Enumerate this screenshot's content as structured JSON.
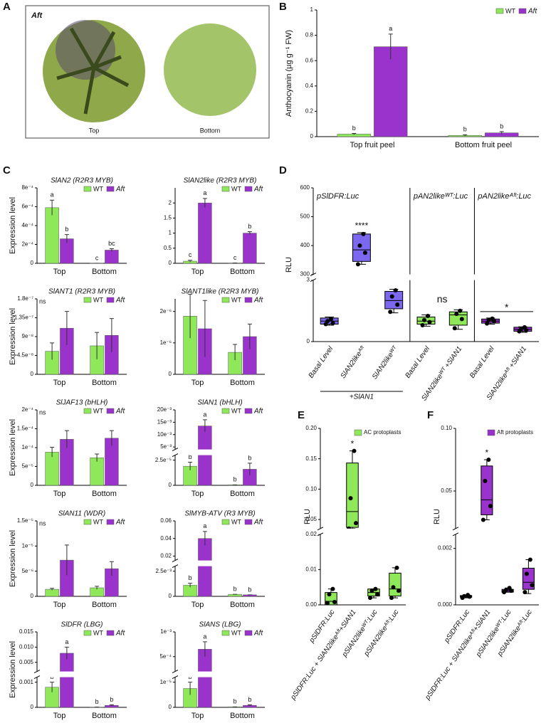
{
  "photo": {
    "panel": "A",
    "label": "Aft",
    "captions": [
      "Top",
      "Bottom"
    ]
  },
  "chart_data": [
    {
      "type": "bar",
      "panel": "B",
      "ylabel": "Anthocyanin (µg g⁻¹ FW)",
      "categories": [
        "Top fruit peel",
        "Bottom fruit peel"
      ],
      "ylim": [
        0,
        1
      ],
      "yticks": [
        0,
        0.2,
        0.4,
        0.6,
        0.8,
        1
      ],
      "series": [
        {
          "name": "WT",
          "color": "#8fe85a",
          "values": [
            0.02,
            0.01
          ],
          "errors": [
            0.005,
            0.005
          ],
          "labels": [
            "b",
            "b"
          ]
        },
        {
          "name": "Aft",
          "color": "#9933cc",
          "values": [
            0.71,
            0.03
          ],
          "errors": [
            0.1,
            0.01
          ],
          "labels": [
            "a",
            "b"
          ]
        }
      ]
    },
    {
      "type": "bar",
      "panel": "C",
      "title": "SlAN2 (R2R3 MYB)",
      "ylabel": "Expression level",
      "categories": [
        "Top",
        "Bottom"
      ],
      "ylim": [
        0,
        0.0008
      ],
      "yticks": [
        0,
        {
          "value": 0.0002,
          "label": "2e⁻⁴"
        },
        {
          "value": 0.0004,
          "label": "4e⁻⁴"
        },
        {
          "value": 0.0006,
          "label": "6e⁻⁴"
        },
        {
          "value": 0.0008,
          "label": "8e⁻⁴"
        }
      ],
      "series": [
        {
          "name": "WT",
          "color": "#8fe85a",
          "values": [
            0.00059,
            5e-07
          ],
          "errors": [
            8e-05,
            0
          ],
          "labels": [
            "a",
            "c"
          ]
        },
        {
          "name": "Aft",
          "color": "#9933cc",
          "values": [
            0.00026,
            0.00014
          ],
          "errors": [
            4.5e-05,
            1.5e-05
          ],
          "labels": [
            "b",
            "bc"
          ]
        }
      ]
    },
    {
      "type": "bar",
      "title": "SlAN2like (R2R3 MYB)",
      "categories": [
        "Top",
        "Bottom"
      ],
      "ylim": [
        0,
        2.5
      ],
      "yticks": [
        0,
        0.5,
        1,
        1.5,
        2
      ],
      "series": [
        {
          "name": "WT",
          "color": "#8fe85a",
          "values": [
            0.07,
            0.01
          ],
          "errors": [
            0.03,
            0
          ],
          "labels": [
            "c",
            "c"
          ]
        },
        {
          "name": "Aft",
          "color": "#9933cc",
          "values": [
            2.0,
            1.0
          ],
          "errors": [
            0.15,
            0.05
          ],
          "labels": [
            "a",
            "b"
          ]
        }
      ]
    },
    {
      "type": "bar",
      "title": "SlANT1 (R2R3 MYB)",
      "ylabel": "Expression level",
      "note": "ns",
      "categories": [
        "Top",
        "Bottom"
      ],
      "ylim": [
        0,
        1.8e-07
      ],
      "yticks": [
        0,
        {
          "value": 4.5e-08,
          "label": "4.5e⁻⁸"
        },
        {
          "value": 9e-08,
          "label": "9e⁻⁸"
        },
        {
          "value": 1.35e-07,
          "label": "1.35e⁻⁷"
        },
        {
          "value": 1.8e-07,
          "label": "1.8e⁻⁷"
        }
      ],
      "series": [
        {
          "name": "WT",
          "color": "#8fe85a",
          "values": [
            5.5e-08,
            6.8e-08
          ],
          "errors": [
            2e-08,
            3.2e-08
          ]
        },
        {
          "name": "Aft",
          "color": "#9933cc",
          "values": [
            1.1e-07,
            9.3e-08
          ],
          "errors": [
            4e-08,
            4e-08
          ]
        }
      ]
    },
    {
      "type": "bar",
      "title": "SlANT1like (R2R3 MYB)",
      "categories": [
        "Top",
        "Bottom"
      ],
      "ylim": [
        0,
        2.4e-06
      ],
      "yticks": [
        0,
        {
          "value": 1e-06,
          "label": "1e⁻⁶"
        },
        {
          "value": 2e-06,
          "label": "2e⁻⁶"
        }
      ],
      "series": [
        {
          "name": "WT",
          "color": "#8fe85a",
          "values": [
            1.85e-06,
            7e-07
          ],
          "errors": [
            7e-07,
            2.5e-07
          ]
        },
        {
          "name": "Aft",
          "color": "#9933cc",
          "values": [
            1.45e-06,
            1.2e-06
          ],
          "errors": [
            9e-07,
            4e-07
          ]
        }
      ]
    },
    {
      "type": "bar",
      "title": "SlJAF13 (bHLH)",
      "ylabel": "Expression level",
      "note": "ns",
      "categories": [
        "Top",
        "Bottom"
      ],
      "ylim": [
        0,
        0.0002
      ],
      "yticks": [
        0,
        {
          "value": 5e-05,
          "label": "5e⁻⁵"
        },
        {
          "value": 0.0001,
          "label": "1e⁻⁴"
        },
        {
          "value": 0.00015,
          "label": "1.5e⁻⁴"
        },
        {
          "value": 0.0002,
          "label": "2e⁻⁴"
        }
      ],
      "series": [
        {
          "name": "WT",
          "color": "#8fe85a",
          "values": [
            8.8e-05,
            7.3e-05
          ],
          "errors": [
            1.3e-05,
            1e-05
          ]
        },
        {
          "name": "Aft",
          "color": "#9933cc",
          "values": [
            0.000122,
            0.000125
          ],
          "errors": [
            2.3e-05,
            2e-05
          ]
        }
      ]
    },
    {
      "type": "bar",
      "title": "SlAN1 (bHLH)",
      "categories": [
        "Top",
        "Bottom"
      ],
      "ylim": [
        0,
        0.02
      ],
      "ybreak": [
        3e-05,
        0.004
      ],
      "yticks": [
        0,
        {
          "value": 2.5e-05,
          "label": "2.5e⁻⁵"
        },
        {
          "value": 0.005,
          "label": "5e⁻³"
        },
        {
          "value": 0.01,
          "label": "10e⁻³"
        },
        {
          "value": 0.015,
          "label": "15e⁻³"
        },
        {
          "value": 0.02,
          "label": "20e⁻³"
        }
      ],
      "series": [
        {
          "name": "WT",
          "color": "#8fe85a",
          "values": [
            1.9e-05,
            5e-07
          ],
          "errors": [
            4e-06,
            0
          ],
          "labels": [
            "b",
            "b"
          ]
        },
        {
          "name": "Aft",
          "color": "#9933cc",
          "values": [
            0.0135,
            1.6e-05
          ],
          "errors": [
            0.0025,
            6e-06
          ],
          "labels": [
            "a",
            "b"
          ]
        }
      ]
    },
    {
      "type": "bar",
      "title": "SlAN11 (WDR)",
      "ylabel": "Expression level",
      "note": "ns",
      "categories": [
        "Top",
        "Bottom"
      ],
      "ylim": [
        0,
        1.5e-05
      ],
      "yticks": [
        0,
        {
          "value": 5e-06,
          "label": "5e⁻⁶"
        },
        {
          "value": 1e-05,
          "label": "1e⁻⁵"
        },
        {
          "value": 1.5e-05,
          "label": "1.5e⁻⁵"
        }
      ],
      "series": [
        {
          "name": "WT",
          "color": "#8fe85a",
          "values": [
            1.4e-06,
            1.7e-06
          ],
          "errors": [
            2e-07,
            3e-07
          ]
        },
        {
          "name": "Aft",
          "color": "#9933cc",
          "values": [
            7.2e-06,
            5.5e-06
          ],
          "errors": [
            3e-06,
            1.4e-06
          ]
        }
      ]
    },
    {
      "type": "bar",
      "title": "SlMYB-ATV (R3 MYB)",
      "categories": [
        "Top",
        "Bottom"
      ],
      "ylim": [
        0,
        0.06
      ],
      "ybreak": [
        0.003,
        0.015
      ],
      "yticks": [
        0,
        {
          "value": 0.0025,
          "label": "2.5e⁻³"
        },
        0.02,
        0.04,
        0.06
      ],
      "series": [
        {
          "name": "WT",
          "color": "#8fe85a",
          "values": [
            0.0011,
            0.0002
          ],
          "errors": [
            0.0002,
            0
          ],
          "labels": [
            "b",
            "b"
          ]
        },
        {
          "name": "Aft",
          "color": "#9933cc",
          "values": [
            0.04,
            0.00015
          ],
          "errors": [
            0.008,
            0
          ],
          "labels": [
            "a",
            "b"
          ]
        }
      ]
    },
    {
      "type": "bar",
      "title": "SlDFR (LBG)",
      "ylabel": "Expression level",
      "categories": [
        "Top",
        "Bottom"
      ],
      "ylim": [
        0,
        0.015
      ],
      "ybreak": [
        0.0012,
        0.002
      ],
      "yticks": [
        0,
        0.001,
        0.005,
        {
          "value": 0.01,
          "label": "0.010"
        },
        0.015
      ],
      "series": [
        {
          "name": "WT",
          "color": "#8fe85a",
          "values": [
            0.0008,
            1e-05
          ],
          "errors": [
            0.0002,
            0
          ],
          "labels": [
            "b",
            "b"
          ]
        },
        {
          "name": "Aft",
          "color": "#9933cc",
          "values": [
            0.008,
            8e-05
          ],
          "errors": [
            0.002,
            2e-05
          ],
          "labels": [
            "a",
            "b"
          ]
        }
      ]
    },
    {
      "type": "bar",
      "title": "SlANS (LBG)",
      "categories": [
        "Top",
        "Bottom"
      ],
      "ylim": [
        0,
        0.001
      ],
      "ybreak": [
        1.2e-05,
        0.0002
      ],
      "yticks": [
        0,
        {
          "value": 1e-05,
          "label": "1e⁻⁵"
        },
        {
          "value": 0.0005,
          "label": "5e⁻⁴"
        },
        {
          "value": 0.001,
          "label": "1e⁻³"
        }
      ],
      "series": [
        {
          "name": "WT",
          "color": "#8fe85a",
          "values": [
            7.5e-06,
            2e-07
          ],
          "errors": [
            2.5e-06,
            0
          ],
          "labels": [
            "b",
            "b"
          ]
        },
        {
          "name": "Aft",
          "color": "#9933cc",
          "values": [
            0.00065,
            8e-07
          ],
          "errors": [
            0.00015,
            2e-07
          ],
          "labels": [
            "a",
            "b"
          ]
        }
      ]
    },
    {
      "type": "box",
      "panel": "D",
      "ylabel": "RLU",
      "ylim": [
        0,
        600
      ],
      "ybreak": [
        3,
        300
      ],
      "yticks": [
        0,
        3,
        300,
        400,
        500,
        600
      ],
      "groups": [
        {
          "title": "pSlDFR:Luc",
          "sublabel": "+SlAN1",
          "categories": [
            "Basal Level",
            "SlAN2likeᴬᶠᵗ",
            "SlAN2likeᵂᵀ"
          ],
          "boxes": [
            {
              "color": "#7b68ee",
              "min": 0.8,
              "q1": 0.85,
              "median": 1.0,
              "q3": 1.15,
              "max": 1.2,
              "points": [
                0.85,
                0.9,
                1.0,
                1.1
              ]
            },
            {
              "color": "#7b68ee",
              "min": 335,
              "q1": 345,
              "median": 385,
              "q3": 440,
              "max": 445,
              "points": [
                335,
                375,
                400,
                440
              ],
              "note": "****"
            },
            {
              "color": "#7b68ee",
              "min": 1.4,
              "q1": 1.6,
              "median": 2.0,
              "q3": 2.45,
              "max": 2.55,
              "points": [
                1.45,
                1.8,
                2.2,
                2.5
              ]
            }
          ]
        },
        {
          "title": "pAN2likeᵂᵀ:Luc",
          "note": "ns",
          "categories": [
            "Basal Level",
            "SlAN2likeᵂᵀ +SlAN1"
          ],
          "boxes": [
            {
              "color": "#8fe85a",
              "min": 0.75,
              "q1": 0.85,
              "median": 1.0,
              "q3": 1.2,
              "max": 1.3,
              "points": [
                0.8,
                0.95,
                1.05,
                1.25
              ]
            },
            {
              "color": "#8fe85a",
              "min": 0.6,
              "q1": 0.8,
              "median": 1.3,
              "q3": 1.45,
              "max": 1.55,
              "points": [
                0.65,
                1.1,
                1.35,
                1.5
              ]
            }
          ]
        },
        {
          "title": "pAN2likeᴬᶠᵗ:Luc",
          "note": "*",
          "categories": [
            "Basal Level",
            "SlAN2likeᴬᶠᵗ +SlAN1"
          ],
          "boxes": [
            {
              "color": "#9933cc",
              "min": 0.85,
              "q1": 0.9,
              "median": 1.0,
              "q3": 1.1,
              "max": 1.15,
              "points": [
                0.88,
                1.0,
                1.05,
                1.12
              ]
            },
            {
              "color": "#9933cc",
              "min": 0.45,
              "q1": 0.5,
              "median": 0.6,
              "q3": 0.7,
              "max": 0.72,
              "points": [
                0.5,
                0.55,
                0.6,
                0.7
              ]
            }
          ]
        }
      ]
    },
    {
      "type": "box",
      "panel": "E",
      "ylabel": "RLU",
      "legend": {
        "name": "AC protoplasts",
        "color": "#8fe85a"
      },
      "ylim": [
        0,
        0.2
      ],
      "ybreak": [
        0.02,
        0.035
      ],
      "yticks": [
        {
          "value": 0,
          "label": "0.00"
        },
        0.01,
        0.02,
        0.05,
        {
          "value": 0.1,
          "label": "0.10"
        },
        0.15,
        {
          "value": 0.2,
          "label": "0.20"
        }
      ],
      "groups": [
        {
          "categories": [
            "pSlDFR:Luc",
            "pSlDFR:Luc + SlAN2likeᴬᶠᵗ+SlAN1",
            "pSlAN2likeᵂᵀ:Luc",
            "pSlAN2likeᴬᶠᵗ:Luc"
          ],
          "boxes": [
            {
              "color": "#8fe85a",
              "min": 0,
              "q1": 0,
              "median": 0.001,
              "q3": 0.0035,
              "max": 0.0045,
              "points": [
                0.0005,
                0.0008,
                0.003,
                0.0045
              ]
            },
            {
              "color": "#8fe85a",
              "min": 0.035,
              "q1": 0.037,
              "median": 0.063,
              "q3": 0.143,
              "max": 0.163,
              "points": [
                0.035,
                0.044,
                0.085,
                0.163
              ],
              "note": "*"
            },
            {
              "color": "#8fe85a",
              "min": 0.002,
              "q1": 0.0025,
              "median": 0.0035,
              "q3": 0.0045,
              "max": 0.0045,
              "points": [
                0.002,
                0.003,
                0.004,
                0.0045
              ]
            },
            {
              "color": "#8fe85a",
              "min": 0.002,
              "q1": 0.0025,
              "median": 0.0045,
              "q3": 0.009,
              "max": 0.0105,
              "points": [
                0.002,
                0.004,
                0.005,
                0.0105
              ]
            }
          ]
        }
      ]
    },
    {
      "type": "box",
      "panel": "F",
      "ylabel": "RLU",
      "legend": {
        "name": "Aft protoplasts",
        "color": "#9933cc"
      },
      "ylim": [
        0,
        0.1
      ],
      "ybreak": [
        0.0025,
        0.02
      ],
      "yticks": [
        {
          "value": 0,
          "label": "0.000"
        },
        0.002,
        0.05,
        {
          "value": 0.1,
          "label": "0.10"
        }
      ],
      "groups": [
        {
          "categories": [
            "pSlDFR:Luc",
            "pSlDFR:Luc + SlAN2likeᴬᶠᵗ+SlAN1",
            "pSlAN2likeᵂᵀ:Luc",
            "pSlAN2likeᴬᶠᵗ:Luc"
          ],
          "boxes": [
            {
              "color": "#9933cc",
              "min": 0.00025,
              "q1": 0.00027,
              "median": 0.0003,
              "q3": 0.00033,
              "max": 0.00035,
              "points": [
                0.00025,
                0.00029,
                0.00031,
                0.00035
              ]
            },
            {
              "color": "#9933cc",
              "min": 0.027,
              "q1": 0.031,
              "median": 0.043,
              "q3": 0.07,
              "max": 0.075,
              "points": [
                0.027,
                0.038,
                0.058,
                0.075
              ],
              "note": "*"
            },
            {
              "color": "#9933cc",
              "min": 0.00045,
              "q1": 0.00045,
              "median": 0.0005,
              "q3": 0.00055,
              "max": 0.0006,
              "points": [
                0.00045,
                0.0005,
                0.00052,
                0.0006
              ]
            },
            {
              "color": "#9933cc",
              "min": 0.0004,
              "q1": 0.00055,
              "median": 0.0008,
              "q3": 0.0013,
              "max": 0.0016,
              "points": [
                0.00045,
                0.0007,
                0.0011,
                0.0016
              ]
            }
          ]
        }
      ]
    }
  ]
}
